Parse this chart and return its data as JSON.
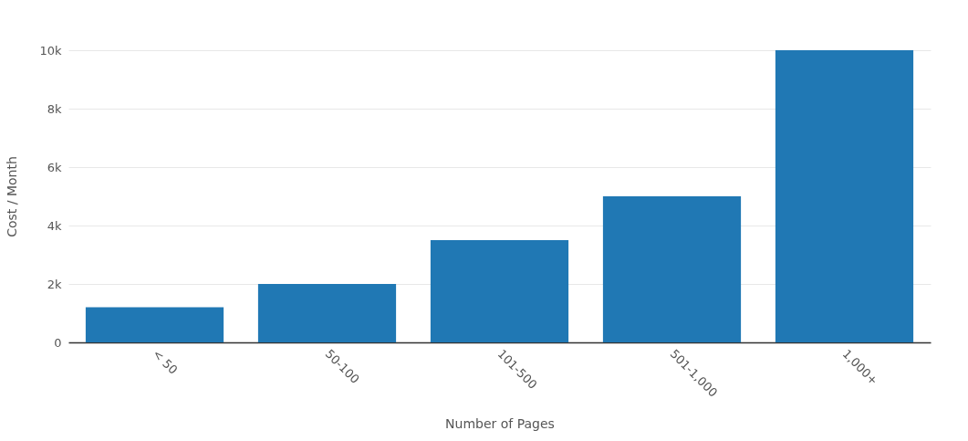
{
  "chart_data": {
    "type": "bar",
    "xlabel": "Number of Pages",
    "ylabel": "Cost / Month",
    "categories": [
      "< 50",
      "50-100",
      "101-500",
      "501-1,000",
      "1,000+"
    ],
    "values": [
      1200,
      2000,
      3500,
      5000,
      10000
    ],
    "color": "#2078b4",
    "ylim": [
      0,
      10000
    ],
    "yticks": [
      {
        "value": 0,
        "label": "0"
      },
      {
        "value": 2000,
        "label": "2k"
      },
      {
        "value": 4000,
        "label": "4k"
      },
      {
        "value": 6000,
        "label": "6k"
      },
      {
        "value": 8000,
        "label": "8k"
      },
      {
        "value": 10000,
        "label": "10k"
      }
    ],
    "grid": "y"
  }
}
